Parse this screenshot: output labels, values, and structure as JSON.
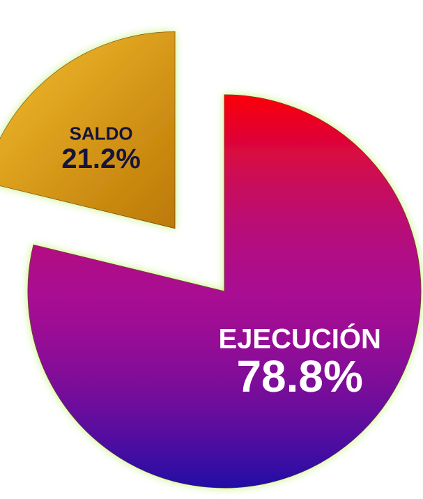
{
  "chart_data": {
    "type": "pie",
    "categories": [
      "EJECUCIÓN",
      "SALDO"
    ],
    "values": [
      78.8,
      21.2
    ],
    "value_labels": [
      "78.8%",
      "21.2%"
    ],
    "colors": [
      "#b0108c",
      "#e8a010"
    ],
    "exploded": [
      false,
      true
    ]
  }
}
